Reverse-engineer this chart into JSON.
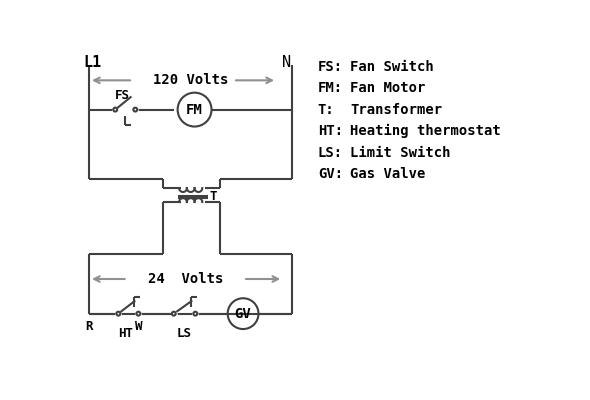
{
  "bg_color": "#ffffff",
  "line_color": "#404040",
  "arrow_color": "#909090",
  "text_color": "#000000",
  "legend": [
    [
      "FS:",
      "Fan Switch"
    ],
    [
      "FM:",
      "Fan Motor"
    ],
    [
      "T:",
      "Transformer"
    ],
    [
      "HT:",
      "Heating thermostat"
    ],
    [
      "LS:",
      "Limit Switch"
    ],
    [
      "GV:",
      "Gas Valve"
    ]
  ]
}
